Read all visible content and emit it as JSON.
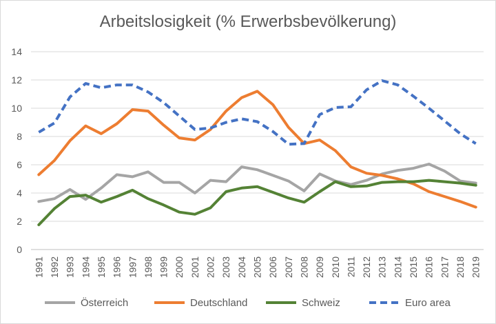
{
  "chart_data": {
    "type": "line",
    "title": "Arbeitslosigkeit (% Erwerbsbevölkerung)",
    "xlabel": "",
    "ylabel": "",
    "ylim": [
      0,
      14
    ],
    "yticks": [
      0,
      2,
      4,
      6,
      8,
      10,
      12,
      14
    ],
    "grid": true,
    "legend_position": "bottom",
    "categories": [
      "1991",
      "1992",
      "1993",
      "1994",
      "1995",
      "1996",
      "1997",
      "1998",
      "1999",
      "2000",
      "2001",
      "2002",
      "2003",
      "2004",
      "2005",
      "2006",
      "2007",
      "2008",
      "2009",
      "2010",
      "2011",
      "2012",
      "2013",
      "2014",
      "2015",
      "2016",
      "2017",
      "2018",
      "2019"
    ],
    "series": [
      {
        "name": "Österreich",
        "color": "#a5a5a5",
        "dash": "solid",
        "values": [
          3.4,
          3.6,
          4.25,
          3.55,
          4.35,
          5.3,
          5.15,
          5.5,
          4.75,
          4.75,
          4.0,
          4.9,
          4.8,
          5.85,
          5.65,
          5.25,
          4.85,
          4.15,
          5.35,
          4.85,
          4.6,
          4.9,
          5.35,
          5.6,
          5.75,
          6.05,
          5.55,
          4.85,
          4.7
        ]
      },
      {
        "name": "Deutschland",
        "color": "#ed7d31",
        "dash": "solid",
        "values": [
          5.3,
          6.3,
          7.7,
          8.75,
          8.2,
          8.9,
          9.9,
          9.8,
          8.8,
          7.9,
          7.75,
          8.5,
          9.8,
          10.75,
          11.2,
          10.25,
          8.65,
          7.5,
          7.75,
          7.0,
          5.85,
          5.4,
          5.25,
          5.0,
          4.65,
          4.1,
          3.75,
          3.4,
          3.0
        ]
      },
      {
        "name": "Schweiz",
        "color": "#548235",
        "dash": "solid",
        "values": [
          1.75,
          2.9,
          3.75,
          3.85,
          3.35,
          3.75,
          4.2,
          3.6,
          3.15,
          2.65,
          2.5,
          2.95,
          4.1,
          4.35,
          4.45,
          4.05,
          3.65,
          3.35,
          4.1,
          4.8,
          4.45,
          4.5,
          4.75,
          4.8,
          4.8,
          4.9,
          4.8,
          4.7,
          4.55
        ]
      },
      {
        "name": "Euro area",
        "color": "#4472c4",
        "dash": "dashed",
        "values": [
          8.3,
          8.95,
          10.8,
          11.75,
          11.45,
          11.65,
          11.65,
          11.15,
          10.4,
          9.45,
          8.5,
          8.6,
          9.0,
          9.25,
          9.05,
          8.35,
          7.45,
          7.5,
          9.55,
          10.05,
          10.1,
          11.3,
          11.95,
          11.65,
          10.85,
          10.0,
          9.1,
          8.2,
          7.5
        ]
      }
    ]
  }
}
